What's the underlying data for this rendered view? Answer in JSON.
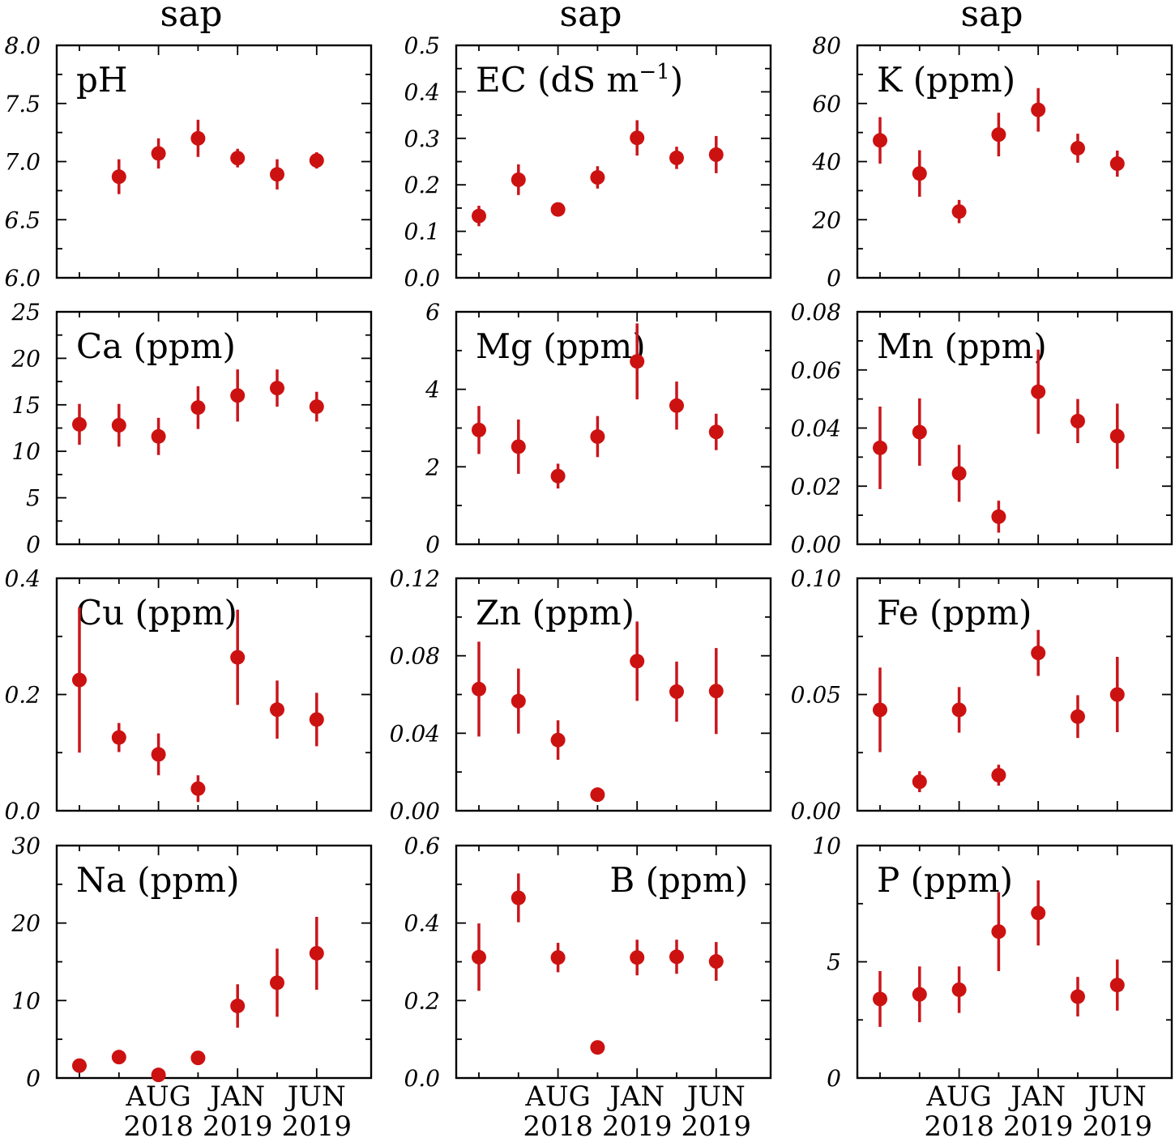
{
  "column_titles": [
    "sap",
    "sap",
    "sap"
  ],
  "x_tick_labels": [
    {
      "month": "AUG",
      "year": "2018"
    },
    {
      "month": "JAN",
      "year": "2019"
    },
    {
      "month": "JUN",
      "year": "2019"
    }
  ],
  "colors": {
    "point": "#cc1111",
    "errbar": "#c8161d",
    "frame": "#000000"
  },
  "chart_data": [
    {
      "type": "scatter",
      "title": "pH",
      "ylim": [
        6.0,
        8.0
      ],
      "yticks": [
        "6.0",
        "6.5",
        "7.0",
        "7.5",
        "8.0"
      ],
      "x": [
        1,
        2,
        3,
        4,
        5,
        6
      ],
      "values": [
        6.87,
        7.07,
        7.2,
        7.03,
        6.89,
        7.01
      ],
      "errors": [
        0.15,
        0.13,
        0.16,
        0.08,
        0.13,
        0.07
      ]
    },
    {
      "type": "scatter",
      "title": "EC (dS m",
      "title_sup": "−1",
      "title_suffix": ")",
      "ylim": [
        0.0,
        0.5
      ],
      "yticks": [
        "0.0",
        "0.1",
        "0.2",
        "0.3",
        "0.4",
        "0.5"
      ],
      "x": [
        0,
        1,
        2,
        3,
        4,
        5,
        6
      ],
      "values": [
        0.133,
        0.211,
        0.147,
        0.216,
        0.301,
        0.258,
        0.265
      ],
      "errors": [
        0.022,
        0.033,
        0.011,
        0.024,
        0.038,
        0.024,
        0.04
      ]
    },
    {
      "type": "scatter",
      "title": "K (ppm)",
      "ylim": [
        0,
        80
      ],
      "yticks": [
        "0",
        "20",
        "40",
        "60",
        "80"
      ],
      "x": [
        0,
        1,
        2,
        3,
        4,
        5,
        6
      ],
      "values": [
        47.3,
        35.9,
        22.8,
        49.3,
        57.8,
        44.6,
        39.3
      ],
      "errors": [
        8.0,
        8.0,
        4.0,
        7.5,
        7.5,
        5.0,
        4.5
      ]
    },
    {
      "type": "scatter",
      "title": "Ca (ppm)",
      "ylim": [
        0,
        25
      ],
      "yticks": [
        "0",
        "5",
        "10",
        "15",
        "20",
        "25"
      ],
      "x": [
        0,
        1,
        2,
        3,
        4,
        5,
        6
      ],
      "values": [
        12.9,
        12.8,
        11.6,
        14.7,
        16.0,
        16.8,
        14.8
      ],
      "errors": [
        2.2,
        2.3,
        2.0,
        2.3,
        2.8,
        2.0,
        1.6
      ]
    },
    {
      "type": "scatter",
      "title": "Mg (ppm)",
      "ylim": [
        0,
        6
      ],
      "yticks": [
        "0",
        "2",
        "4",
        "6"
      ],
      "x": [
        0,
        1,
        2,
        3,
        4,
        5,
        6
      ],
      "values": [
        2.95,
        2.52,
        1.76,
        2.78,
        4.72,
        3.58,
        2.9
      ],
      "errors": [
        0.62,
        0.7,
        0.32,
        0.53,
        0.98,
        0.62,
        0.47
      ]
    },
    {
      "type": "scatter",
      "title": "Mn (ppm)",
      "ylim": [
        0.0,
        0.08
      ],
      "yticks": [
        "0.00",
        "0.02",
        "0.04",
        "0.06",
        "0.08"
      ],
      "x": [
        0,
        1,
        2,
        3,
        4,
        5,
        6
      ],
      "values": [
        0.0332,
        0.0386,
        0.0244,
        0.0095,
        0.0525,
        0.0424,
        0.0372
      ],
      "errors": [
        0.0142,
        0.0116,
        0.0098,
        0.0055,
        0.0145,
        0.0076,
        0.0112
      ]
    },
    {
      "type": "scatter",
      "title": "Cu (ppm)",
      "ylim": [
        0.0,
        0.4
      ],
      "yticks": [
        "0.0",
        "0.2",
        "0.4"
      ],
      "x": [
        0,
        1,
        2,
        3,
        4,
        5,
        6
      ],
      "values": [
        0.225,
        0.126,
        0.097,
        0.038,
        0.264,
        0.174,
        0.157
      ],
      "errors": [
        0.125,
        0.025,
        0.036,
        0.023,
        0.082,
        0.05,
        0.046
      ]
    },
    {
      "type": "scatter",
      "title": "Zn (ppm)",
      "ylim": [
        0.0,
        0.12
      ],
      "yticks": [
        "0.00",
        "0.04",
        "0.08",
        "0.12"
      ],
      "x": [
        0,
        1,
        2,
        3,
        4,
        5,
        6
      ],
      "values": [
        0.0628,
        0.0566,
        0.0365,
        0.0083,
        0.0772,
        0.0615,
        0.0618
      ],
      "errors": [
        0.0245,
        0.0168,
        0.0102,
        0.0015,
        0.0205,
        0.0155,
        0.0222
      ]
    },
    {
      "type": "scatter",
      "title": "Fe (ppm)",
      "ylim": [
        0.0,
        0.1
      ],
      "yticks": [
        "0.00",
        "0.05",
        "0.10"
      ],
      "x": [
        0,
        1,
        2,
        3,
        4,
        5,
        6
      ],
      "values": [
        0.0434,
        0.0125,
        0.0434,
        0.0153,
        0.0679,
        0.0405,
        0.05
      ],
      "errors": [
        0.0182,
        0.0045,
        0.0098,
        0.0045,
        0.0099,
        0.0092,
        0.0162
      ]
    },
    {
      "type": "scatter",
      "title": "Na (ppm)",
      "ylim": [
        0,
        30
      ],
      "yticks": [
        "0",
        "10",
        "20",
        "30"
      ],
      "x": [
        0,
        1,
        2,
        3,
        4,
        5,
        6
      ],
      "values": [
        1.6,
        2.7,
        0.4,
        2.6,
        9.3,
        12.3,
        16.1
      ],
      "errors": [
        0.0,
        0.0,
        0.0,
        0.0,
        2.8,
        4.4,
        4.7
      ]
    },
    {
      "type": "scatter",
      "title": "B (ppm)",
      "title_align": "right",
      "ylim": [
        0.0,
        0.6
      ],
      "yticks": [
        "0.0",
        "0.2",
        "0.4",
        "0.6"
      ],
      "x": [
        0,
        1,
        2,
        3,
        4,
        5,
        6
      ],
      "values": [
        0.312,
        0.465,
        0.311,
        0.079,
        0.311,
        0.313,
        0.301
      ],
      "errors": [
        0.087,
        0.063,
        0.038,
        0.0,
        0.046,
        0.044,
        0.05
      ]
    },
    {
      "type": "scatter",
      "title": "P (ppm)",
      "ylim": [
        0,
        10
      ],
      "yticks": [
        "0",
        "5",
        "10"
      ],
      "x": [
        0,
        1,
        2,
        3,
        4,
        5,
        6
      ],
      "values": [
        3.4,
        3.6,
        3.8,
        6.3,
        7.1,
        3.5,
        4.0
      ],
      "errors": [
        1.2,
        1.2,
        1.0,
        1.7,
        1.4,
        0.85,
        1.1
      ]
    }
  ]
}
